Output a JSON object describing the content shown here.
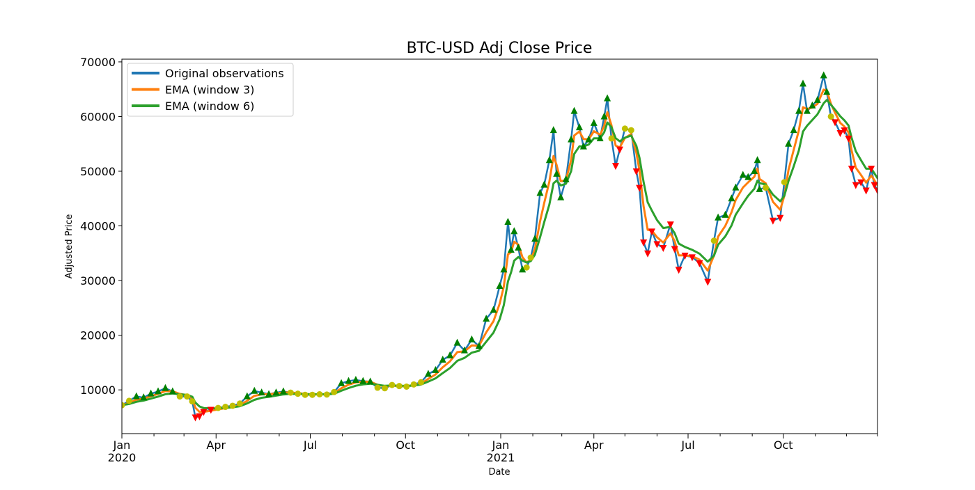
{
  "chart_data": {
    "type": "line",
    "title": "BTC-USD Adj Close Price",
    "xlabel": "Date",
    "ylabel": "Adjusted Price",
    "xlim": [
      "2020-01-01",
      "2021-12-31"
    ],
    "ylim": [
      2000,
      70500
    ],
    "y_ticks": [
      10000,
      20000,
      30000,
      40000,
      50000,
      60000,
      70000
    ],
    "x_ticks": [
      {
        "date": "2020-01-01",
        "label": "Jan",
        "year": "2020"
      },
      {
        "date": "2020-04-01",
        "label": "Apr",
        "year": ""
      },
      {
        "date": "2020-07-01",
        "label": "Jul",
        "year": ""
      },
      {
        "date": "2020-10-01",
        "label": "Oct",
        "year": ""
      },
      {
        "date": "2021-01-01",
        "label": "Jan",
        "year": "2021"
      },
      {
        "date": "2021-04-01",
        "label": "Apr",
        "year": ""
      },
      {
        "date": "2021-07-01",
        "label": "Jul",
        "year": ""
      },
      {
        "date": "2021-10-01",
        "label": "Oct",
        "year": ""
      }
    ],
    "legend_position": "top-left",
    "grid": false,
    "series": [
      {
        "name": "Original observations",
        "color": "#1f77b4"
      },
      {
        "name": "EMA (window 3)",
        "color": "#ff7f0e"
      },
      {
        "name": "EMA (window 6)",
        "color": "#2ca02c"
      }
    ],
    "marker_colors": {
      "up": "#008000",
      "down": "#ff0000",
      "neutral": "#bfbf00"
    },
    "observations": [
      [
        "2020-01-01",
        7200
      ],
      [
        "2020-01-08",
        8000
      ],
      [
        "2020-01-15",
        8800
      ],
      [
        "2020-01-22",
        8600
      ],
      [
        "2020-01-29",
        9300
      ],
      [
        "2020-02-05",
        9700
      ],
      [
        "2020-02-12",
        10300
      ],
      [
        "2020-02-19",
        9700
      ],
      [
        "2020-02-26",
        8800
      ],
      [
        "2020-03-04",
        8800
      ],
      [
        "2020-03-09",
        7900
      ],
      [
        "2020-03-12",
        5000
      ],
      [
        "2020-03-16",
        5200
      ],
      [
        "2020-03-20",
        6000
      ],
      [
        "2020-03-27",
        6400
      ],
      [
        "2020-04-03",
        6700
      ],
      [
        "2020-04-10",
        6900
      ],
      [
        "2020-04-17",
        7100
      ],
      [
        "2020-04-24",
        7500
      ],
      [
        "2020-05-01",
        8800
      ],
      [
        "2020-05-08",
        9800
      ],
      [
        "2020-05-15",
        9500
      ],
      [
        "2020-05-22",
        9200
      ],
      [
        "2020-05-29",
        9500
      ],
      [
        "2020-06-05",
        9700
      ],
      [
        "2020-06-12",
        9500
      ],
      [
        "2020-06-19",
        9300
      ],
      [
        "2020-06-26",
        9100
      ],
      [
        "2020-07-03",
        9100
      ],
      [
        "2020-07-10",
        9200
      ],
      [
        "2020-07-17",
        9150
      ],
      [
        "2020-07-24",
        9600
      ],
      [
        "2020-07-31",
        11200
      ],
      [
        "2020-08-07",
        11600
      ],
      [
        "2020-08-14",
        11800
      ],
      [
        "2020-08-21",
        11600
      ],
      [
        "2020-08-28",
        11500
      ],
      [
        "2020-09-04",
        10400
      ],
      [
        "2020-09-11",
        10300
      ],
      [
        "2020-09-18",
        10900
      ],
      [
        "2020-09-25",
        10700
      ],
      [
        "2020-10-02",
        10600
      ],
      [
        "2020-10-09",
        11000
      ],
      [
        "2020-10-16",
        11400
      ],
      [
        "2020-10-23",
        12900
      ],
      [
        "2020-10-30",
        13600
      ],
      [
        "2020-11-06",
        15500
      ],
      [
        "2020-11-13",
        16300
      ],
      [
        "2020-11-20",
        18600
      ],
      [
        "2020-11-27",
        17200
      ],
      [
        "2020-12-04",
        19200
      ],
      [
        "2020-12-11",
        18000
      ],
      [
        "2020-12-18",
        23000
      ],
      [
        "2020-12-25",
        24600
      ],
      [
        "2020-12-31",
        29000
      ],
      [
        "2021-01-04",
        32000
      ],
      [
        "2021-01-08",
        40700
      ],
      [
        "2021-01-11",
        35600
      ],
      [
        "2021-01-14",
        39000
      ],
      [
        "2021-01-18",
        36000
      ],
      [
        "2021-01-22",
        32000
      ],
      [
        "2021-01-26",
        32400
      ],
      [
        "2021-01-30",
        34200
      ],
      [
        "2021-02-03",
        37600
      ],
      [
        "2021-02-08",
        46000
      ],
      [
        "2021-02-12",
        47500
      ],
      [
        "2021-02-17",
        52000
      ],
      [
        "2021-02-21",
        57500
      ],
      [
        "2021-02-24",
        49500
      ],
      [
        "2021-02-28",
        45200
      ],
      [
        "2021-03-05",
        48500
      ],
      [
        "2021-03-10",
        55800
      ],
      [
        "2021-03-13",
        61000
      ],
      [
        "2021-03-18",
        58000
      ],
      [
        "2021-03-22",
        54500
      ],
      [
        "2021-03-27",
        55800
      ],
      [
        "2021-04-01",
        58800
      ],
      [
        "2021-04-07",
        56000
      ],
      [
        "2021-04-11",
        60000
      ],
      [
        "2021-04-14",
        63300
      ],
      [
        "2021-04-18",
        56000
      ],
      [
        "2021-04-22",
        51000
      ],
      [
        "2021-04-26",
        54000
      ],
      [
        "2021-05-01",
        57800
      ],
      [
        "2021-05-07",
        57500
      ],
      [
        "2021-05-12",
        50000
      ],
      [
        "2021-05-15",
        47000
      ],
      [
        "2021-05-19",
        37000
      ],
      [
        "2021-05-23",
        35000
      ],
      [
        "2021-05-27",
        39000
      ],
      [
        "2021-06-01",
        36700
      ],
      [
        "2021-06-07",
        36000
      ],
      [
        "2021-06-14",
        40300
      ],
      [
        "2021-06-18",
        35800
      ],
      [
        "2021-06-22",
        32000
      ],
      [
        "2021-06-28",
        34600
      ],
      [
        "2021-07-05",
        34300
      ],
      [
        "2021-07-12",
        33200
      ],
      [
        "2021-07-20",
        29800
      ],
      [
        "2021-07-26",
        37300
      ],
      [
        "2021-07-30",
        41500
      ],
      [
        "2021-08-06",
        42000
      ],
      [
        "2021-08-12",
        45000
      ],
      [
        "2021-08-16",
        47000
      ],
      [
        "2021-08-23",
        49300
      ],
      [
        "2021-08-28",
        48900
      ],
      [
        "2021-09-03",
        50000
      ],
      [
        "2021-09-06",
        52000
      ],
      [
        "2021-09-08",
        46700
      ],
      [
        "2021-09-14",
        47000
      ],
      [
        "2021-09-21",
        41000
      ],
      [
        "2021-09-28",
        41500
      ],
      [
        "2021-10-02",
        48000
      ],
      [
        "2021-10-06",
        55000
      ],
      [
        "2021-10-11",
        57500
      ],
      [
        "2021-10-16",
        61000
      ],
      [
        "2021-10-20",
        66000
      ],
      [
        "2021-10-24",
        61000
      ],
      [
        "2021-10-29",
        62000
      ],
      [
        "2021-11-03",
        63000
      ],
      [
        "2021-11-09",
        67500
      ],
      [
        "2021-11-12",
        64500
      ],
      [
        "2021-11-16",
        60000
      ],
      [
        "2021-11-20",
        59000
      ],
      [
        "2021-11-25",
        57000
      ],
      [
        "2021-11-29",
        57500
      ],
      [
        "2021-12-03",
        56000
      ],
      [
        "2021-12-06",
        50500
      ],
      [
        "2021-12-10",
        47500
      ],
      [
        "2021-12-15",
        48000
      ],
      [
        "2021-12-20",
        46500
      ],
      [
        "2021-12-25",
        50500
      ],
      [
        "2021-12-28",
        47500
      ],
      [
        "2021-12-31",
        46500
      ]
    ]
  }
}
